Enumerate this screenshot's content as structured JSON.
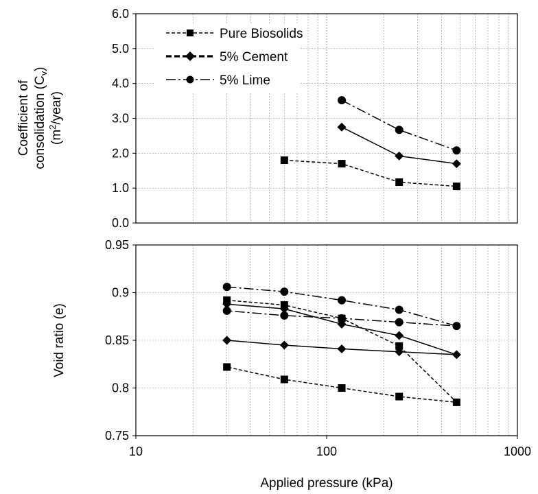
{
  "chart_data": [
    {
      "type": "line",
      "xlabel": "",
      "ylabel_line1": "Coefficient of",
      "ylabel_line2_prefix": "consolidation (C",
      "ylabel_line2_sub": "v",
      "ylabel_line2_suffix": ")",
      "ylabel_line3_prefix": "(m",
      "ylabel_line3_sup": "2",
      "ylabel_line3_suffix": "/year)",
      "xscale": "log",
      "xlim": [
        10,
        1000
      ],
      "ylim": [
        0,
        6
      ],
      "yticks": [
        "0.0",
        "1.0",
        "2.0",
        "3.0",
        "4.0",
        "5.0",
        "6.0"
      ],
      "grid": true,
      "legend_position": "top-left",
      "series": [
        {
          "name": "Pure Biosolids",
          "marker": "square",
          "line": "short-dash",
          "points": [
            [
              60,
              1.8
            ],
            [
              120,
              1.7
            ],
            [
              240,
              1.17
            ],
            [
              480,
              1.05
            ]
          ]
        },
        {
          "name": "5% Cement",
          "marker": "diamond",
          "line": "solid",
          "points": [
            [
              120,
              2.75
            ],
            [
              240,
              1.92
            ],
            [
              480,
              1.7
            ]
          ]
        },
        {
          "name": "5% Lime",
          "marker": "circle",
          "line": "dash-dot",
          "points": [
            [
              120,
              3.52
            ],
            [
              240,
              2.67
            ],
            [
              480,
              2.08
            ]
          ]
        }
      ]
    },
    {
      "type": "line",
      "xlabel": "Applied pressure (kPa)",
      "ylabel": "Void ratio (e)",
      "xscale": "log",
      "xlim": [
        10,
        1000
      ],
      "xticks": [
        "10",
        "100",
        "1000"
      ],
      "ylim": [
        0.75,
        0.95
      ],
      "yticks": [
        "0.75",
        "0.8",
        "0.85",
        "0.9",
        "0.95"
      ],
      "grid": true,
      "series": [
        {
          "marker": "square",
          "line": "short-dash",
          "points": [
            [
              30,
              0.892
            ],
            [
              60,
              0.887
            ],
            [
              120,
              0.873
            ],
            [
              240,
              0.844
            ],
            [
              480,
              0.785
            ],
            [
              240,
              0.791
            ],
            [
              120,
              0.8
            ],
            [
              60,
              0.809
            ],
            [
              30,
              0.822
            ]
          ]
        },
        {
          "marker": "diamond",
          "line": "solid",
          "points": [
            [
              30,
              0.888
            ],
            [
              60,
              0.883
            ],
            [
              120,
              0.867
            ],
            [
              240,
              0.855
            ],
            [
              480,
              0.835
            ],
            [
              240,
              0.838
            ],
            [
              120,
              0.841
            ],
            [
              60,
              0.845
            ],
            [
              30,
              0.85
            ]
          ]
        },
        {
          "marker": "circle",
          "line": "dash-dot",
          "points": [
            [
              30,
              0.906
            ],
            [
              60,
              0.901
            ],
            [
              120,
              0.892
            ],
            [
              240,
              0.882
            ],
            [
              480,
              0.865
            ],
            [
              240,
              0.869
            ],
            [
              120,
              0.873
            ],
            [
              60,
              0.876
            ],
            [
              30,
              0.881
            ]
          ]
        }
      ]
    }
  ]
}
